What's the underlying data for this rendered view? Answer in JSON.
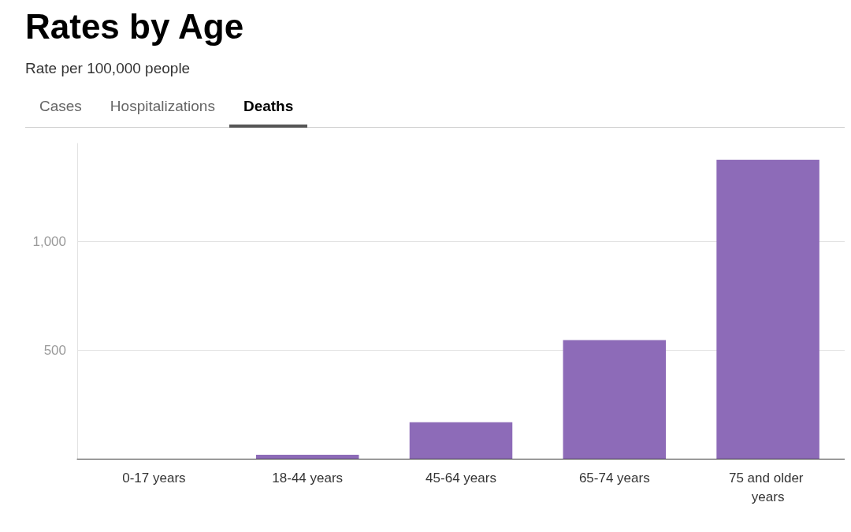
{
  "chart_data": {
    "type": "bar",
    "title": "Rates by Age",
    "subtitle": "Rate per 100,000 people",
    "annotations": [
      "Cases",
      "Hospitalizations",
      "Deaths"
    ],
    "categories": [
      "0-17 years",
      "18-44 years",
      "45-64 years",
      "65-74 years",
      "75 and older years"
    ],
    "values": [
      0,
      18,
      168,
      546,
      1375
    ],
    "color": "#8d6bb8",
    "ylim": [
      0,
      1450
    ],
    "yticks": [
      500,
      {
        "value": 1000,
        "label": "1,000"
      }
    ],
    "grid": "y"
  }
}
